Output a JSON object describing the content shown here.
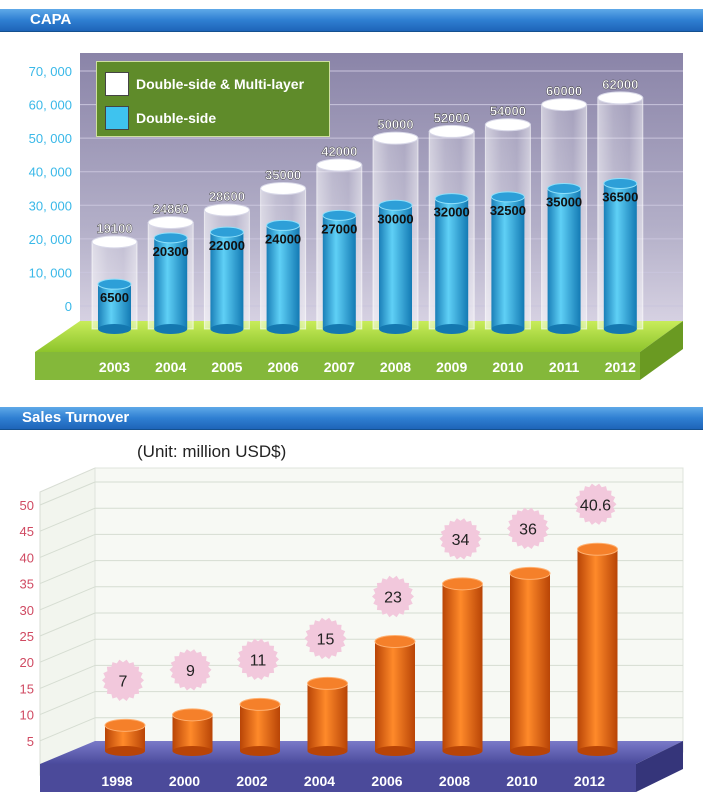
{
  "colors": {
    "banner": "#2f7fd2",
    "capa_bg": "#9a94b6",
    "capa_floor": "#9ccf3c",
    "capa_outer": "#ffffff",
    "capa_inner": "#29a8e0",
    "sales_floor": "#4a4a9c",
    "sales_bar": "#f26a12",
    "sales_badge": "#f2c8dc",
    "capa_axis_text": "#39b8e8",
    "sales_axis_text": "#d04a62"
  },
  "capa": {
    "banner_title": "CAPA",
    "legend": {
      "outer_label": "Double-side & Multi-layer",
      "inner_label": "Double-side"
    },
    "y_tick_labels": [
      "0",
      "10, 000",
      "20, 000",
      "30, 000",
      "40, 000",
      "50, 000",
      "60, 000",
      "70, 000"
    ]
  },
  "sales": {
    "banner_title": "Sales Turnover",
    "unit_note": "(Unit: million USD$)"
  },
  "chart_data": [
    {
      "type": "bar",
      "title": "CAPA",
      "categories": [
        "2003",
        "2004",
        "2005",
        "2006",
        "2007",
        "2008",
        "2009",
        "2010",
        "2011",
        "2012"
      ],
      "series": [
        {
          "name": "Double-side & Multi-layer",
          "values": [
            19100,
            24860,
            28600,
            35000,
            42000,
            50000,
            52000,
            54000,
            60000,
            62000
          ]
        },
        {
          "name": "Double-side",
          "values": [
            6500,
            20300,
            22000,
            24000,
            27000,
            30000,
            32000,
            32500,
            35000,
            36500
          ]
        }
      ],
      "ylim": [
        0,
        70000
      ],
      "y_ticks": [
        0,
        10000,
        20000,
        30000,
        40000,
        50000,
        60000,
        70000
      ],
      "grid": true,
      "legend_position": "top-left"
    },
    {
      "type": "bar",
      "title": "Sales Turnover",
      "categories": [
        "1998",
        "2000",
        "2002",
        "2004",
        "2006",
        "2008",
        "2010",
        "2012"
      ],
      "values": [
        7,
        9,
        11,
        15,
        23,
        34,
        36,
        40.6
      ],
      "ylim": [
        0,
        50
      ],
      "y_ticks": [
        5,
        10,
        15,
        20,
        25,
        30,
        35,
        40,
        45,
        50
      ],
      "grid": true
    }
  ]
}
